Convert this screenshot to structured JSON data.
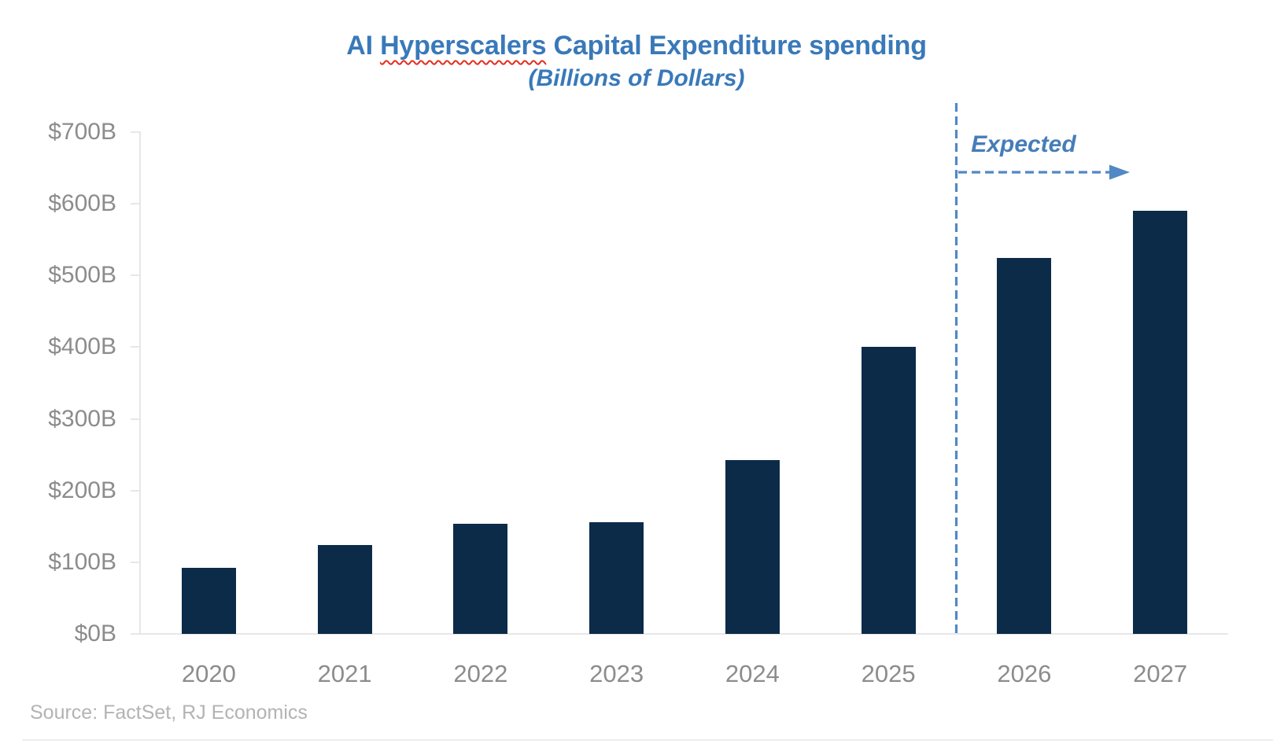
{
  "title": {
    "prefix": "AI ",
    "spellcheck_word": "Hyperscalers",
    "suffix": " Capital Expenditure spending",
    "full": "AI Hyperscalers Capital Expenditure spending"
  },
  "subtitle": "(Billions of Dollars)",
  "source_note": "Source: FactSet, RJ Economics",
  "chart_data": {
    "type": "bar",
    "title": "AI Hyperscalers Capital Expenditure spending",
    "subtitle": "(Billions of Dollars)",
    "unit": "billions of US dollars",
    "categories": [
      "2020",
      "2021",
      "2022",
      "2023",
      "2024",
      "2025",
      "2026",
      "2027"
    ],
    "values": [
      92,
      124,
      154,
      156,
      242,
      400,
      525,
      590
    ],
    "series_name": "AI hyperscalers capital expenditure",
    "ylim": [
      0,
      700
    ],
    "y_tick_step": 100,
    "y_tick_labels": [
      "$0B",
      "$100B",
      "$200B",
      "$300B",
      "$400B",
      "$500B",
      "$600B",
      "$700B"
    ],
    "gridlines": false,
    "legend": false,
    "annotation": {
      "label": "Expected",
      "divider_between": [
        "2025",
        "2026"
      ],
      "applies_to": [
        "2026",
        "2027"
      ]
    }
  },
  "colors": {
    "bar_fill": "#0b2b49",
    "title_text": "#3979b9",
    "annotation_text": "#467db8",
    "dashed_line": "#5288c4",
    "axis_label_text": "#8c8c8c",
    "source_text": "#b3b3b3",
    "axis_line": "#e7e7e7",
    "spellcheck_underline": "#e42d1f"
  }
}
